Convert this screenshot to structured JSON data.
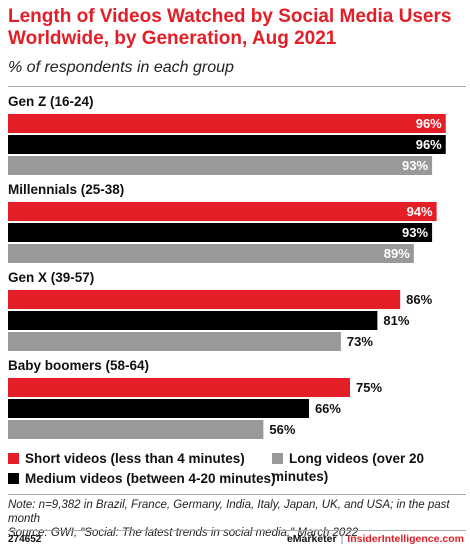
{
  "title": "Length of Videos Watched by Social Media Users Worldwide, by Generation, Aug 2021",
  "subtitle": "% of respondents in each group",
  "colors": {
    "short": "#e41e26",
    "medium": "#000000",
    "long": "#999999",
    "title": "#e41e26"
  },
  "chart_data": {
    "type": "bar",
    "orientation": "horizontal",
    "title": "Length of Videos Watched by Social Media Users Worldwide, by Generation, Aug 2021",
    "subtitle": "% of respondents in each group",
    "categories": [
      "Gen Z (16-24)",
      "Millennials (25-38)",
      "Gen X (39-57)",
      "Baby boomers (58-64)"
    ],
    "series": [
      {
        "name": "Short videos (less than 4 minutes)",
        "values": [
          96,
          94,
          86,
          75
        ],
        "labels": [
          "96%",
          "94%",
          "86%",
          "75%"
        ]
      },
      {
        "name": "Medium videos (between 4-20 minutes)",
        "values": [
          96,
          93,
          81,
          66
        ],
        "labels": [
          "96%",
          "93%",
          "81%",
          "66%"
        ]
      },
      {
        "name": "Long videos (over 20 minutes)",
        "values": [
          93,
          89,
          73,
          56
        ],
        "labels": [
          "93%",
          "89%",
          "73%",
          "56%"
        ]
      }
    ],
    "xlim": [
      0,
      100
    ],
    "grid": false,
    "legend_position": "bottom"
  },
  "legend": {
    "short": "Short videos (less than 4 minutes)",
    "long": "Long videos (over 20 minutes)",
    "medium": "Medium videos (between 4-20 minutes)"
  },
  "note": "Note: n=9,382 in Brazil, France, Germany, India, Italy, Japan, UK, and USA; in the past month",
  "source": "Source: GWI, \"Social: The latest trends in social media,\" March 2022",
  "footer": {
    "id": "274652",
    "brand": "eMarketer",
    "separator": "|",
    "site": "InsiderIntelligence.com"
  }
}
